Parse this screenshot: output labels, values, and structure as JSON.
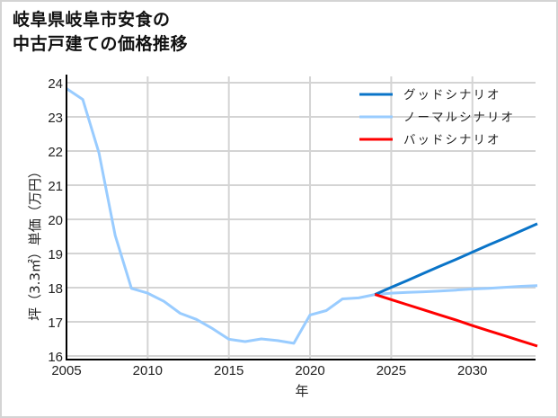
{
  "title": {
    "line1": "岐阜県岐阜市安食の",
    "line2": "中古戸建ての価格推移"
  },
  "colors": {
    "good": "#0a74c8",
    "normal": "#99ccff",
    "bad": "#ff0000",
    "grid": "#d4d4d4",
    "axis": "#000000"
  },
  "chart_data": {
    "type": "line",
    "title": "岐阜県岐阜市安食の中古戸建ての価格推移",
    "xlabel": "年",
    "ylabel": "坪（3.3㎡）単価（万円）",
    "xlim": [
      2005,
      2034
    ],
    "ylim": [
      16,
      24
    ],
    "xticks": [
      2005,
      2010,
      2015,
      2020,
      2025,
      2030
    ],
    "yticks": [
      16,
      17,
      18,
      19,
      20,
      21,
      22,
      23,
      24
    ],
    "grid": true,
    "legend_position": "upper right",
    "series": [
      {
        "name": "ノーマルシナリオ",
        "key": "normal",
        "x": [
          2005,
          2006,
          2007,
          2008,
          2009,
          2010,
          2011,
          2012,
          2013,
          2014,
          2015,
          2016,
          2017,
          2018,
          2019,
          2020,
          2021,
          2022,
          2023,
          2024,
          2025,
          2026,
          2027,
          2028,
          2029,
          2030,
          2031,
          2032,
          2033,
          2034
        ],
        "values": [
          23.83,
          23.51,
          21.95,
          19.53,
          17.98,
          17.84,
          17.6,
          17.25,
          17.07,
          16.8,
          16.49,
          16.42,
          16.5,
          16.45,
          16.37,
          17.2,
          17.33,
          17.67,
          17.7,
          17.8,
          17.84,
          17.86,
          17.88,
          17.9,
          17.93,
          17.96,
          17.98,
          18.01,
          18.04,
          18.06
        ]
      },
      {
        "name": "グッドシナリオ",
        "key": "good",
        "x": [
          2024,
          2025,
          2026,
          2027,
          2028,
          2029,
          2030,
          2031,
          2032,
          2033,
          2034
        ],
        "values": [
          17.8,
          18.01,
          18.21,
          18.42,
          18.63,
          18.83,
          19.04,
          19.25,
          19.45,
          19.66,
          19.87
        ]
      },
      {
        "name": "バッドシナリオ",
        "key": "bad",
        "x": [
          2024,
          2025,
          2026,
          2027,
          2028,
          2029,
          2030,
          2031,
          2032,
          2033,
          2034
        ],
        "values": [
          17.8,
          17.65,
          17.5,
          17.35,
          17.2,
          17.05,
          16.89,
          16.74,
          16.59,
          16.44,
          16.29
        ]
      }
    ],
    "legend": [
      {
        "label": "グッドシナリオ",
        "key": "good"
      },
      {
        "label": "ノーマルシナリオ",
        "key": "normal"
      },
      {
        "label": "バッドシナリオ",
        "key": "bad"
      }
    ]
  }
}
